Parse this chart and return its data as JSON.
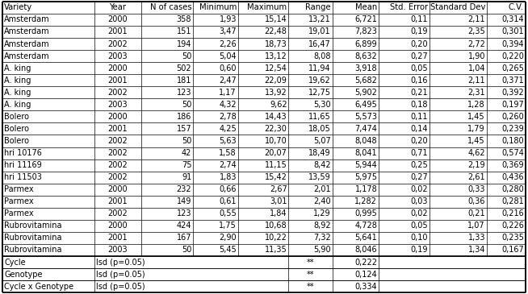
{
  "columns": [
    "Variety",
    "Year",
    "N of cases",
    "Minimum",
    "Maximum",
    "Range",
    "Mean",
    "Std. Error",
    "Standard Dev",
    "C.V."
  ],
  "rows": [
    [
      "Amsterdam",
      "2000",
      "358",
      "1,93",
      "15,14",
      "13,21",
      "6,721",
      "0,11",
      "2,11",
      "0,314"
    ],
    [
      "Amsterdam",
      "2001",
      "151",
      "3,47",
      "22,48",
      "19,01",
      "7,823",
      "0,19",
      "2,35",
      "0,301"
    ],
    [
      "Amsterdam",
      "2002",
      "194",
      "2,26",
      "18,73",
      "16,47",
      "6,899",
      "0,20",
      "2,72",
      "0,394"
    ],
    [
      "Amsterdam",
      "2003",
      "50",
      "5,04",
      "13,12",
      "8,08",
      "8,632",
      "0,27",
      "1,90",
      "0,220"
    ],
    [
      "A. king",
      "2000",
      "502",
      "0,60",
      "12,54",
      "11,94",
      "3,918",
      "0,05",
      "1,04",
      "0,265"
    ],
    [
      "A. king",
      "2001",
      "181",
      "2,47",
      "22,09",
      "19,62",
      "5,682",
      "0,16",
      "2,11",
      "0,371"
    ],
    [
      "A. king",
      "2002",
      "123",
      "1,17",
      "13,92",
      "12,75",
      "5,902",
      "0,21",
      "2,31",
      "0,392"
    ],
    [
      "A. king",
      "2003",
      "50",
      "4,32",
      "9,62",
      "5,30",
      "6,495",
      "0,18",
      "1,28",
      "0,197"
    ],
    [
      "Bolero",
      "2000",
      "186",
      "2,78",
      "14,43",
      "11,65",
      "5,573",
      "0,11",
      "1,45",
      "0,260"
    ],
    [
      "Bolero",
      "2001",
      "157",
      "4,25",
      "22,30",
      "18,05",
      "7,474",
      "0,14",
      "1,79",
      "0,239"
    ],
    [
      "Bolero",
      "2002",
      "50",
      "5,63",
      "10,70",
      "5,07",
      "8,048",
      "0,20",
      "1,45",
      "0,180"
    ],
    [
      "hri 10176",
      "2002",
      "42",
      "1,58",
      "20,07",
      "18,49",
      "8,041",
      "0,71",
      "4,62",
      "0,574"
    ],
    [
      "hri 11169",
      "2002",
      "75",
      "2,74",
      "11,15",
      "8,42",
      "5,944",
      "0,25",
      "2,19",
      "0,369"
    ],
    [
      "hri 11503",
      "2002",
      "91",
      "1,83",
      "15,42",
      "13,59",
      "5,975",
      "0,27",
      "2,61",
      "0,436"
    ],
    [
      "Parmex",
      "2000",
      "232",
      "0,66",
      "2,67",
      "2,01",
      "1,178",
      "0,02",
      "0,33",
      "0,280"
    ],
    [
      "Parmex",
      "2001",
      "149",
      "0,61",
      "3,01",
      "2,40",
      "1,282",
      "0,03",
      "0,36",
      "0,281"
    ],
    [
      "Parmex",
      "2002",
      "123",
      "0,55",
      "1,84",
      "1,29",
      "0,995",
      "0,02",
      "0,21",
      "0,216"
    ],
    [
      "Rubrovitamina",
      "2000",
      "424",
      "1,75",
      "10,68",
      "8,92",
      "4,728",
      "0,05",
      "1,07",
      "0,226"
    ],
    [
      "Rubrovitamina",
      "2001",
      "167",
      "2,90",
      "10,22",
      "7,32",
      "5,641",
      "0,10",
      "1,33",
      "0,235"
    ],
    [
      "Rubrovitamina",
      "2003",
      "50",
      "5,45",
      "11,35",
      "5,90",
      "8,046",
      "0,19",
      "1,34",
      "0,167"
    ]
  ],
  "footer_rows": [
    [
      "Cycle",
      "lsd (p=0.05)",
      "**",
      "0,222"
    ],
    [
      "Genotype",
      "lsd (p=0.05)",
      "**",
      "0,124"
    ],
    [
      "Cycle x Genotype",
      "lsd (p=0.05)",
      "**",
      "0,334"
    ]
  ],
  "col_widths_rel": [
    1.55,
    0.78,
    0.88,
    0.76,
    0.85,
    0.74,
    0.78,
    0.85,
    0.97,
    0.65
  ],
  "line_color": "#000000",
  "font_size": 7.0,
  "header_font_size": 7.2,
  "col_ha": [
    "left",
    "center",
    "right",
    "right",
    "right",
    "right",
    "right",
    "right",
    "right",
    "right"
  ],
  "fig_width": 6.54,
  "fig_height": 3.65,
  "dpi": 100
}
